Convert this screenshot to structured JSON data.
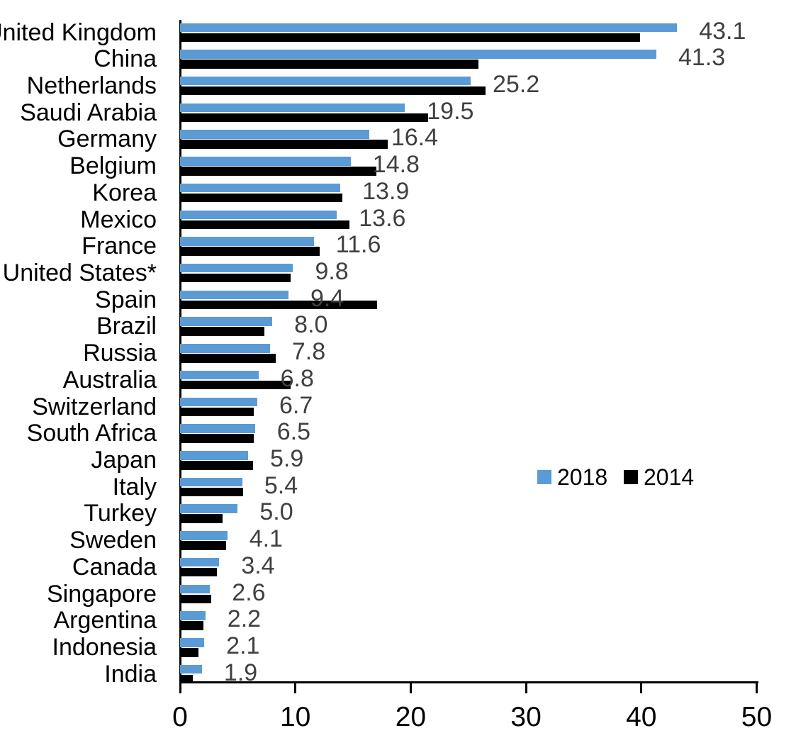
{
  "chart_data": {
    "type": "bar",
    "orientation": "horizontal",
    "title": "",
    "xlabel": "",
    "ylabel": "",
    "categories": [
      "United Kingdom",
      "China",
      "Netherlands",
      "Saudi Arabia",
      "Germany",
      "Belgium",
      "Korea",
      "Mexico",
      "France",
      "United States*",
      "Spain",
      "Brazil",
      "Russia",
      "Australia",
      "Switzerland",
      "South Africa",
      "Japan",
      "Italy",
      "Turkey",
      "Sweden",
      "Canada",
      "Singapore",
      "Argentina",
      "Indonesia",
      "India"
    ],
    "series": [
      {
        "name": "2018",
        "color": "#5B9BD5",
        "values": [
          43.1,
          41.3,
          25.2,
          19.5,
          16.4,
          14.8,
          13.9,
          13.6,
          11.6,
          9.8,
          9.4,
          8.0,
          7.8,
          6.8,
          6.7,
          6.5,
          5.9,
          5.4,
          5.0,
          4.1,
          3.4,
          2.6,
          2.2,
          2.1,
          1.9
        ]
      },
      {
        "name": "2014",
        "color": "#000000",
        "values": [
          39.9,
          25.9,
          26.5,
          21.5,
          18.0,
          17.0,
          14.1,
          14.7,
          12.1,
          9.6,
          17.1,
          7.3,
          8.3,
          9.6,
          6.4,
          6.4,
          6.3,
          5.5,
          3.7,
          4.0,
          3.2,
          2.7,
          2.0,
          1.6,
          1.1
        ]
      }
    ],
    "data_labels": {
      "labeled_series": "2018",
      "color": "#404040",
      "values": [
        "43.1",
        "41.3",
        "25.2",
        "19.5",
        "16.4",
        "14.8",
        "13.9",
        "13.6",
        "11.6",
        "9.8",
        "9.4",
        "8.0",
        "7.8",
        "6.8",
        "6.7",
        "6.5",
        "5.9",
        "5.4",
        "5.0",
        "4.1",
        "3.4",
        "2.6",
        "2.2",
        "2.1",
        "1.9"
      ]
    },
    "xlim": [
      0,
      50
    ],
    "x_ticks": [
      0,
      10,
      20,
      30,
      40,
      50
    ],
    "grid": false,
    "legend": {
      "position": "center-right",
      "entries": [
        {
          "label": "2018",
          "color": "#5B9BD5"
        },
        {
          "label": "2014",
          "color": "#000000"
        }
      ]
    },
    "axis_color": "#000000",
    "background_color": "#FFFFFF"
  }
}
